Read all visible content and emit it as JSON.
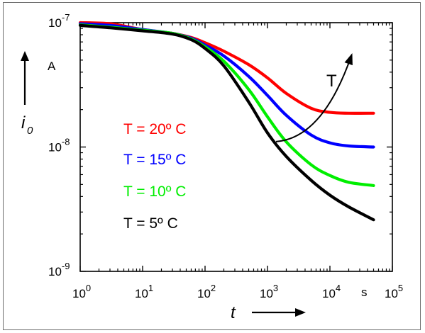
{
  "chart_data": {
    "type": "line",
    "xscale": "log",
    "yscale": "log",
    "xlim": [
      1,
      100000
    ],
    "ylim": [
      1e-09,
      1e-07
    ],
    "grid": false,
    "legend_placement": "left, middle",
    "xlabel": "t",
    "ylabel": "i",
    "ylabel_subscript": "0",
    "x_unit": "s",
    "y_unit": "A",
    "x_ticks": [
      {
        "value": 1,
        "base": "10",
        "exp": "0"
      },
      {
        "value": 10,
        "base": "10",
        "exp": "1"
      },
      {
        "value": 100,
        "base": "10",
        "exp": "2"
      },
      {
        "value": 1000,
        "base": "10",
        "exp": "3"
      },
      {
        "value": 10000,
        "base": "10",
        "exp": "4"
      },
      {
        "value": 100000,
        "base": "10",
        "exp": "5"
      }
    ],
    "y_ticks": [
      {
        "value": 1e-09,
        "base": "10",
        "exp": "-9"
      },
      {
        "value": 1e-08,
        "base": "10",
        "exp": "-8"
      },
      {
        "value": 1e-07,
        "base": "10",
        "exp": "-7"
      }
    ],
    "annotation": {
      "label": "T",
      "from": [
        1000,
        1.4e-08
      ],
      "to": [
        20000,
        5e-08
      ],
      "direction": "increasing T"
    },
    "series": [
      {
        "name": "T = 20º C",
        "color": "#ff0000",
        "x": [
          1,
          3,
          10,
          30,
          60,
          100,
          200,
          500,
          1000,
          2000,
          5000,
          10000,
          20000,
          50000
        ],
        "y": [
          1e-07,
          9.8e-08,
          8.8e-08,
          8.2e-08,
          7.6e-08,
          6.9e-08,
          5.9e-08,
          4.6e-08,
          3.6e-08,
          2.7e-08,
          2.05e-08,
          1.9e-08,
          1.87e-08,
          1.87e-08
        ]
      },
      {
        "name": "T = 15º C",
        "color": "#0000ff",
        "x": [
          1,
          3,
          10,
          30,
          60,
          100,
          200,
          500,
          1000,
          2000,
          5000,
          10000,
          20000,
          50000
        ],
        "y": [
          9.8e-08,
          9.5e-08,
          8.8e-08,
          8.2e-08,
          7.5e-08,
          6.6e-08,
          5.4e-08,
          3.7e-08,
          2.6e-08,
          1.8e-08,
          1.25e-08,
          1.08e-08,
          1.02e-08,
          1e-08
        ]
      },
      {
        "name": "T = 10º C",
        "color": "#00ee00",
        "x": [
          1,
          3,
          10,
          30,
          60,
          100,
          200,
          500,
          1000,
          2000,
          5000,
          10000,
          20000,
          50000
        ],
        "y": [
          9.6e-08,
          9.2e-08,
          8.7e-08,
          8.2e-08,
          7.4e-08,
          6.4e-08,
          4.9e-08,
          2.9e-08,
          1.75e-08,
          1.1e-08,
          7.2e-09,
          5.9e-09,
          5.2e-09,
          4.9e-09
        ]
      },
      {
        "name": "T = 5º C",
        "color": "#000000",
        "x": [
          1,
          3,
          10,
          30,
          60,
          100,
          200,
          500,
          1000,
          2000,
          5000,
          10000,
          20000,
          50000
        ],
        "y": [
          9.5e-08,
          9.1e-08,
          8.6e-08,
          8.1e-08,
          7.3e-08,
          6.2e-08,
          4.5e-08,
          2.3e-08,
          1.3e-08,
          8.4e-09,
          5.4e-09,
          4.1e-09,
          3.3e-09,
          2.6e-09
        ]
      }
    ]
  }
}
